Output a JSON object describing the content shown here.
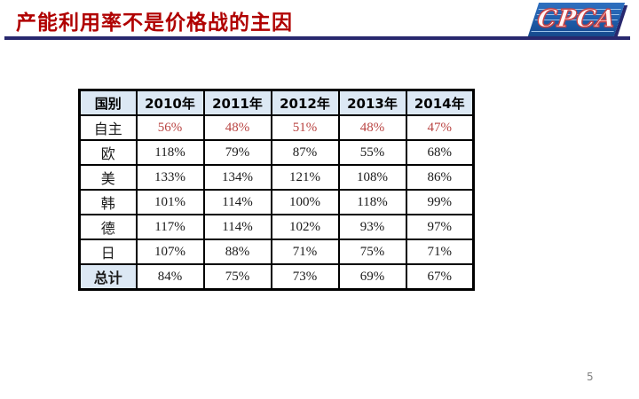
{
  "slide": {
    "title": "产能利用率不是价格战的主因",
    "page_number": "5"
  },
  "logo": {
    "text": "CPCA"
  },
  "table": {
    "headers": [
      "国别",
      "2010年",
      "2011年",
      "2012年",
      "2013年",
      "2014年"
    ],
    "rows": [
      {
        "label": "自主",
        "values": [
          "56%",
          "48%",
          "51%",
          "48%",
          "47%"
        ],
        "emphasis": "red"
      },
      {
        "label": "欧",
        "values": [
          "118%",
          "79%",
          "87%",
          "55%",
          "68%"
        ]
      },
      {
        "label": "美",
        "values": [
          "133%",
          "134%",
          "121%",
          "108%",
          "86%"
        ]
      },
      {
        "label": "韩",
        "values": [
          "101%",
          "114%",
          "100%",
          "118%",
          "99%"
        ]
      },
      {
        "label": "德",
        "values": [
          "117%",
          "114%",
          "102%",
          "93%",
          "97%"
        ]
      },
      {
        "label": "日",
        "values": [
          "107%",
          "88%",
          "71%",
          "75%",
          "71%"
        ]
      },
      {
        "label": "总计",
        "values": [
          "84%",
          "75%",
          "73%",
          "69%",
          "67%"
        ],
        "is_total": true
      }
    ]
  },
  "colors": {
    "title_red": "#b00000",
    "rule_navy": "#28286e",
    "header_bg": "#dce8f4",
    "value_red": "#b94442",
    "logo_blue": "#1d5ca9",
    "border_black": "#000000",
    "page_gray": "#808080"
  }
}
